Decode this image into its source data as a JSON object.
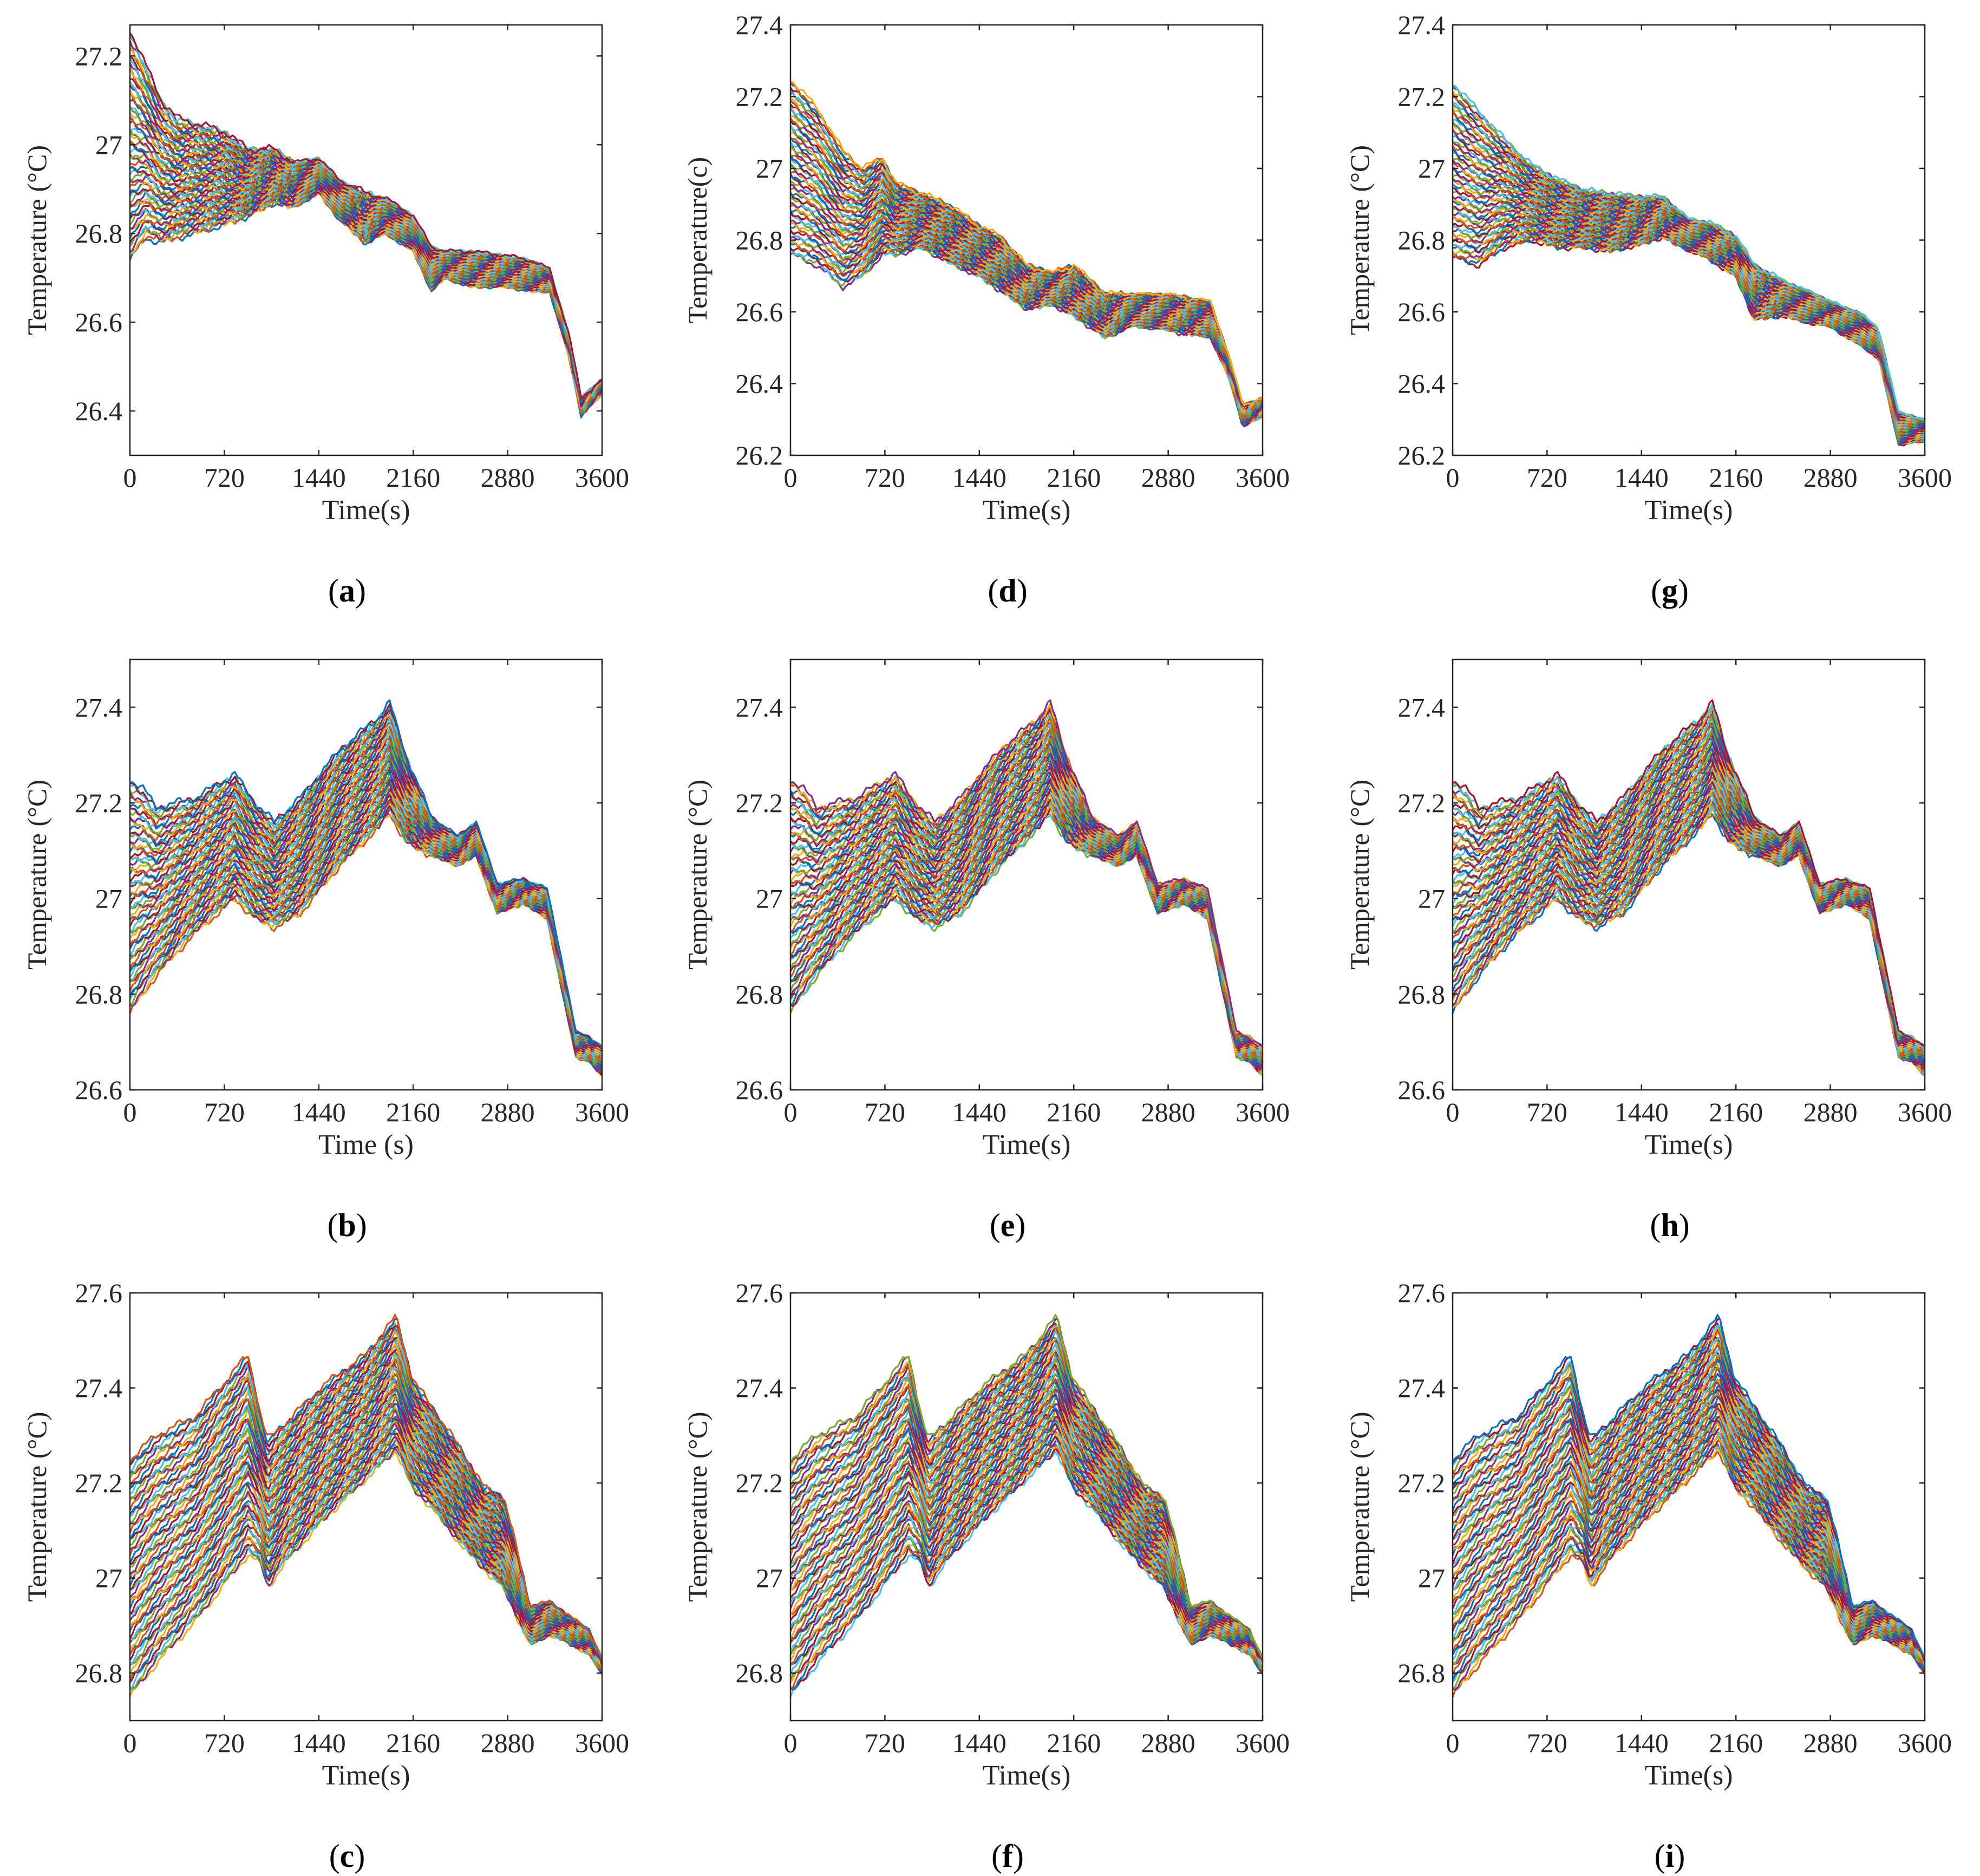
{
  "figure": {
    "panel_labels": [
      "(a)",
      "(b)",
      "(c)",
      "(d)",
      "(e)",
      "(f)",
      "(g)",
      "(h)",
      "(i)"
    ]
  },
  "chart_data": [
    {
      "id": "a",
      "label": "(a)",
      "type": "line",
      "xlabel": "Time(s)",
      "ylabel": "Temperature (°C)",
      "xlim": [
        0,
        3600
      ],
      "ylim": [
        26.3,
        27.27
      ],
      "xticks": [
        "0",
        "720",
        "1440",
        "2160",
        "2880",
        "3600"
      ],
      "yticks": [
        "26.4",
        "26.6",
        "26.8",
        "27",
        "27.2"
      ],
      "envelope": {
        "x": [
          0,
          120,
          240,
          360,
          720,
          900,
          1100,
          1250,
          1440,
          1600,
          1800,
          1950,
          2160,
          2300,
          2400,
          2600,
          2880,
          3050,
          3200,
          3350,
          3440,
          3600
        ],
        "upper": [
          27.26,
          27.18,
          27.1,
          27.06,
          27.03,
          26.99,
          26.99,
          26.96,
          26.97,
          26.92,
          26.89,
          26.88,
          26.84,
          26.77,
          26.76,
          26.76,
          26.75,
          26.74,
          26.72,
          26.57,
          26.43,
          26.47
        ],
        "lower": [
          26.74,
          26.79,
          26.78,
          26.79,
          26.82,
          26.84,
          26.87,
          26.86,
          26.89,
          26.83,
          26.78,
          26.8,
          26.76,
          26.67,
          26.7,
          26.68,
          26.68,
          26.67,
          26.67,
          26.52,
          26.39,
          26.44
        ]
      }
    },
    {
      "id": "b",
      "label": "(b)",
      "type": "line",
      "xlabel": "Time (s)",
      "ylabel": "Temperature (°C)",
      "xlim": [
        0,
        3600
      ],
      "ylim": [
        26.6,
        27.5
      ],
      "xticks": [
        "0",
        "720",
        "1440",
        "2160",
        "2880",
        "3600"
      ],
      "yticks": [
        "26.6",
        "26.8",
        "27",
        "27.2",
        "27.4"
      ],
      "envelope": {
        "x": [
          0,
          100,
          200,
          500,
          800,
          950,
          1100,
          1300,
          1600,
          1900,
          1980,
          2100,
          2300,
          2500,
          2640,
          2800,
          3000,
          3180,
          3300,
          3400,
          3500,
          3600
        ],
        "upper": [
          27.25,
          27.23,
          27.19,
          27.21,
          27.26,
          27.2,
          27.16,
          27.21,
          27.31,
          27.38,
          27.41,
          27.3,
          27.17,
          27.13,
          27.16,
          27.03,
          27.04,
          27.02,
          26.86,
          26.72,
          26.71,
          26.69
        ],
        "lower": [
          26.76,
          26.8,
          26.84,
          26.93,
          27.0,
          26.96,
          26.94,
          26.97,
          27.07,
          27.15,
          27.18,
          27.12,
          27.09,
          27.07,
          27.09,
          26.97,
          26.99,
          26.96,
          26.8,
          26.67,
          26.66,
          26.63
        ]
      }
    },
    {
      "id": "c",
      "label": "(c)",
      "type": "line",
      "xlabel": "Time(s)",
      "ylabel": "Temperature (°C)",
      "xlim": [
        0,
        3600
      ],
      "ylim": [
        26.7,
        27.6
      ],
      "xticks": [
        "0",
        "720",
        "1440",
        "2160",
        "2880",
        "3600"
      ],
      "yticks": [
        "26.8",
        "27",
        "27.2",
        "27.4",
        "27.6"
      ],
      "envelope": {
        "x": [
          0,
          200,
          500,
          900,
          1000,
          1050,
          1200,
          1500,
          1800,
          2030,
          2150,
          2300,
          2500,
          2700,
          2850,
          2950,
          3050,
          3200,
          3300,
          3500,
          3600
        ],
        "upper": [
          27.25,
          27.3,
          27.34,
          27.47,
          27.34,
          27.29,
          27.33,
          27.41,
          27.47,
          27.55,
          27.42,
          27.36,
          27.28,
          27.19,
          27.17,
          27.06,
          26.94,
          26.95,
          26.93,
          26.89,
          26.83
        ],
        "lower": [
          26.75,
          26.82,
          26.91,
          27.05,
          27.03,
          26.98,
          27.04,
          27.13,
          27.21,
          27.27,
          27.19,
          27.15,
          27.08,
          27.02,
          26.98,
          26.92,
          26.86,
          26.88,
          26.87,
          26.84,
          26.8
        ]
      }
    },
    {
      "id": "d",
      "label": "(d)",
      "type": "line",
      "xlabel": "Time(s)",
      "ylabel": "Temperature(c)",
      "xlim": [
        0,
        3600
      ],
      "ylim": [
        26.2,
        27.4
      ],
      "xticks": [
        "0",
        "720",
        "1440",
        "2160",
        "2880",
        "3600"
      ],
      "yticks": [
        "26.2",
        "26.4",
        "26.6",
        "26.8",
        "27",
        "27.2",
        "27.4"
      ],
      "envelope": {
        "x": [
          0,
          200,
          400,
          550,
          700,
          800,
          1000,
          1200,
          1440,
          1600,
          1800,
          2000,
          2160,
          2400,
          2600,
          2880,
          3000,
          3200,
          3350,
          3450,
          3600
        ],
        "upper": [
          27.25,
          27.17,
          27.05,
          27.0,
          27.03,
          26.96,
          26.93,
          26.9,
          26.84,
          26.81,
          26.73,
          26.71,
          26.73,
          26.65,
          26.65,
          26.65,
          26.64,
          26.63,
          26.47,
          26.34,
          26.36
        ],
        "lower": [
          26.76,
          26.73,
          26.67,
          26.7,
          26.76,
          26.76,
          26.78,
          26.74,
          26.7,
          26.66,
          26.61,
          26.62,
          26.59,
          26.53,
          26.56,
          26.55,
          26.54,
          26.53,
          26.41,
          26.28,
          26.31
        ]
      }
    },
    {
      "id": "e",
      "label": "(e)",
      "type": "line",
      "xlabel": "Time(s)",
      "ylabel": "Temperature (°C)",
      "xlim": [
        0,
        3600
      ],
      "ylim": [
        26.6,
        27.5
      ],
      "xticks": [
        "0",
        "720",
        "1440",
        "2160",
        "2880",
        "3600"
      ],
      "yticks": [
        "26.6",
        "26.8",
        "27",
        "27.2",
        "27.4"
      ],
      "envelope": {
        "x": [
          0,
          100,
          200,
          500,
          800,
          950,
          1100,
          1300,
          1600,
          1900,
          1980,
          2100,
          2300,
          2500,
          2640,
          2800,
          3000,
          3180,
          3300,
          3400,
          3500,
          3600
        ],
        "upper": [
          27.25,
          27.23,
          27.19,
          27.21,
          27.26,
          27.2,
          27.16,
          27.21,
          27.31,
          27.38,
          27.41,
          27.3,
          27.17,
          27.13,
          27.16,
          27.03,
          27.04,
          27.02,
          26.86,
          26.72,
          26.71,
          26.69
        ],
        "lower": [
          26.76,
          26.8,
          26.84,
          26.93,
          27.0,
          26.96,
          26.94,
          26.97,
          27.07,
          27.15,
          27.18,
          27.12,
          27.09,
          27.07,
          27.09,
          26.97,
          26.99,
          26.96,
          26.8,
          26.67,
          26.66,
          26.63
        ]
      }
    },
    {
      "id": "f",
      "label": "(f)",
      "type": "line",
      "xlabel": "Time(s)",
      "ylabel": "Temperature (°C)",
      "xlim": [
        0,
        3600
      ],
      "ylim": [
        26.7,
        27.6
      ],
      "xticks": [
        "0",
        "720",
        "1440",
        "2160",
        "2880",
        "3600"
      ],
      "yticks": [
        "26.8",
        "27",
        "27.2",
        "27.4",
        "27.6"
      ],
      "envelope": {
        "x": [
          0,
          200,
          500,
          900,
          1000,
          1050,
          1200,
          1500,
          1800,
          2030,
          2150,
          2300,
          2500,
          2700,
          2850,
          2950,
          3050,
          3200,
          3300,
          3500,
          3600
        ],
        "upper": [
          27.25,
          27.3,
          27.34,
          27.47,
          27.34,
          27.29,
          27.33,
          27.41,
          27.47,
          27.55,
          27.42,
          27.36,
          27.28,
          27.19,
          27.17,
          27.06,
          26.94,
          26.95,
          26.93,
          26.89,
          26.83
        ],
        "lower": [
          26.75,
          26.82,
          26.91,
          27.05,
          27.03,
          26.98,
          27.04,
          27.13,
          27.21,
          27.27,
          27.19,
          27.15,
          27.08,
          27.02,
          26.98,
          26.92,
          26.86,
          26.88,
          26.87,
          26.84,
          26.8
        ]
      }
    },
    {
      "id": "g",
      "label": "(g)",
      "type": "line",
      "xlabel": "Time(s)",
      "ylabel": "Temperature (°C)",
      "xlim": [
        0,
        3600
      ],
      "ylim": [
        26.2,
        27.4
      ],
      "xticks": [
        "0",
        "720",
        "1440",
        "2160",
        "2880",
        "3600"
      ],
      "yticks": [
        "26.2",
        "26.4",
        "26.6",
        "26.8",
        "27",
        "27.2",
        "27.4"
      ],
      "envelope": {
        "x": [
          0,
          200,
          400,
          600,
          800,
          1000,
          1200,
          1440,
          1600,
          1800,
          1950,
          2160,
          2300,
          2500,
          2700,
          2880,
          3000,
          3100,
          3250,
          3400,
          3600
        ],
        "upper": [
          27.24,
          27.16,
          27.08,
          27.01,
          26.97,
          26.94,
          26.93,
          26.92,
          26.92,
          26.86,
          26.85,
          26.81,
          26.73,
          26.69,
          26.66,
          26.63,
          26.61,
          26.6,
          26.55,
          26.32,
          26.3
        ],
        "lower": [
          26.75,
          26.73,
          26.78,
          26.8,
          26.78,
          26.78,
          26.77,
          26.79,
          26.81,
          26.77,
          26.75,
          26.7,
          26.58,
          26.59,
          26.57,
          26.56,
          26.53,
          26.51,
          26.47,
          26.23,
          26.24
        ]
      }
    },
    {
      "id": "h",
      "label": "(h)",
      "type": "line",
      "xlabel": "Time(s)",
      "ylabel": "Temperature (°C)",
      "xlim": [
        0,
        3600
      ],
      "ylim": [
        26.6,
        27.5
      ],
      "xticks": [
        "0",
        "720",
        "1440",
        "2160",
        "2880",
        "3600"
      ],
      "yticks": [
        "26.6",
        "26.8",
        "27",
        "27.2",
        "27.4"
      ],
      "envelope": {
        "x": [
          0,
          100,
          200,
          500,
          800,
          950,
          1100,
          1300,
          1600,
          1900,
          1980,
          2100,
          2300,
          2500,
          2640,
          2800,
          3000,
          3180,
          3300,
          3400,
          3500,
          3600
        ],
        "upper": [
          27.25,
          27.23,
          27.19,
          27.21,
          27.26,
          27.2,
          27.16,
          27.21,
          27.31,
          27.38,
          27.41,
          27.3,
          27.17,
          27.13,
          27.16,
          27.03,
          27.04,
          27.02,
          26.86,
          26.72,
          26.71,
          26.69
        ],
        "lower": [
          26.76,
          26.8,
          26.84,
          26.93,
          27.0,
          26.96,
          26.94,
          26.97,
          27.07,
          27.15,
          27.18,
          27.12,
          27.09,
          27.07,
          27.09,
          26.97,
          26.99,
          26.96,
          26.8,
          26.67,
          26.66,
          26.63
        ]
      }
    },
    {
      "id": "i",
      "label": "(i)",
      "type": "line",
      "xlabel": "Time(s)",
      "ylabel": "Temperature (°C)",
      "xlim": [
        0,
        3600
      ],
      "ylim": [
        26.7,
        27.6
      ],
      "xticks": [
        "0",
        "720",
        "1440",
        "2160",
        "2880",
        "3600"
      ],
      "yticks": [
        "26.8",
        "27",
        "27.2",
        "27.4",
        "27.6"
      ],
      "envelope": {
        "x": [
          0,
          200,
          500,
          900,
          1000,
          1050,
          1200,
          1500,
          1800,
          2030,
          2150,
          2300,
          2500,
          2700,
          2850,
          2950,
          3050,
          3200,
          3300,
          3500,
          3600
        ],
        "upper": [
          27.25,
          27.3,
          27.34,
          27.47,
          27.34,
          27.29,
          27.33,
          27.41,
          27.47,
          27.55,
          27.42,
          27.36,
          27.28,
          27.19,
          27.17,
          27.06,
          26.94,
          26.95,
          26.93,
          26.89,
          26.83
        ],
        "lower": [
          26.75,
          26.82,
          26.91,
          27.05,
          27.03,
          26.98,
          27.04,
          27.13,
          27.21,
          27.27,
          27.19,
          27.15,
          27.08,
          27.02,
          26.98,
          26.92,
          26.86,
          26.88,
          26.87,
          26.84,
          26.8
        ]
      }
    }
  ],
  "palette": [
    "#0072BD",
    "#D95319",
    "#EDB120",
    "#7E2F8E",
    "#77AC30",
    "#4DBEEE",
    "#A2142F"
  ]
}
